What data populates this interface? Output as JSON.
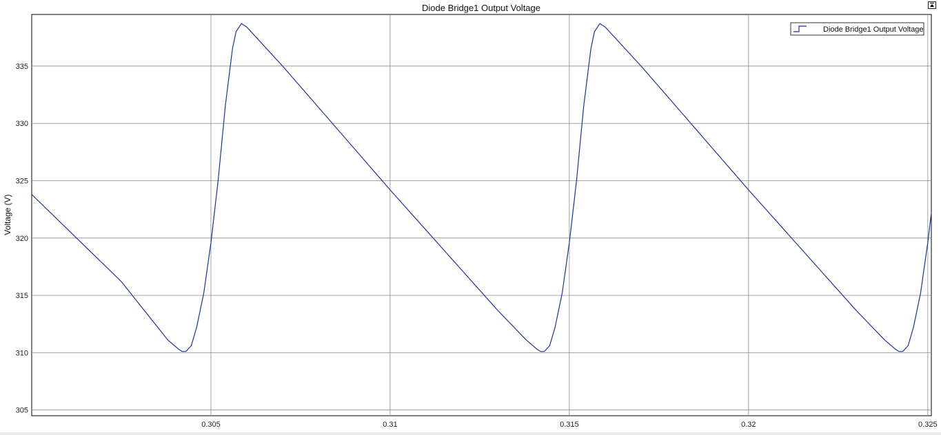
{
  "window": {
    "dock_icon": "dock-undock-icon"
  },
  "chart_data": {
    "type": "line",
    "title": "Diode Bridge1 Output Voltage",
    "xlabel": "",
    "ylabel": "Voltage (V)",
    "xlim": [
      0.3,
      0.3251
    ],
    "ylim": [
      304.5,
      339.5
    ],
    "xticks": [
      0.305,
      0.31,
      0.315,
      0.32,
      0.325
    ],
    "xtick_labels": [
      "0.305",
      "0.31",
      "0.315",
      "0.32",
      "0.325"
    ],
    "yticks": [
      305,
      310,
      315,
      320,
      325,
      330,
      335
    ],
    "ytick_labels": [
      "305",
      "310",
      "315",
      "320",
      "325",
      "330",
      "335"
    ],
    "grid": true,
    "legend_position": "top-right",
    "series": [
      {
        "name": "Diode Bridge1 Output Voltage",
        "color": "#1c2fa8",
        "x": [
          0.3,
          0.3025,
          0.3038,
          0.3041,
          0.3042,
          0.3043,
          0.30445,
          0.3046,
          0.3048,
          0.305,
          0.3052,
          0.3054,
          0.3056,
          0.3057,
          0.30585,
          0.306,
          0.307,
          0.308,
          0.309,
          0.31,
          0.311,
          0.312,
          0.313,
          0.3138,
          0.3141,
          0.3142,
          0.3143,
          0.31445,
          0.3146,
          0.3148,
          0.315,
          0.3152,
          0.3154,
          0.3156,
          0.3157,
          0.31585,
          0.316,
          0.317,
          0.318,
          0.319,
          0.32,
          0.321,
          0.322,
          0.323,
          0.3238,
          0.3241,
          0.3242,
          0.3243,
          0.32445,
          0.3246,
          0.3248,
          0.325,
          0.3251
        ],
        "y": [
          323.8,
          316.2,
          311.1,
          310.3,
          310.1,
          310.1,
          310.6,
          312.2,
          315.2,
          319.6,
          325.0,
          331.5,
          336.5,
          338.0,
          338.7,
          338.4,
          335.0,
          331.4,
          327.8,
          324.2,
          320.7,
          317.2,
          313.7,
          311.1,
          310.3,
          310.1,
          310.1,
          310.6,
          312.2,
          315.2,
          319.6,
          325.0,
          331.5,
          336.5,
          338.0,
          338.7,
          338.4,
          335.0,
          331.4,
          327.8,
          324.2,
          320.7,
          317.2,
          313.7,
          311.1,
          310.3,
          310.1,
          310.1,
          310.6,
          312.2,
          315.2,
          319.6,
          322.2
        ]
      }
    ]
  }
}
